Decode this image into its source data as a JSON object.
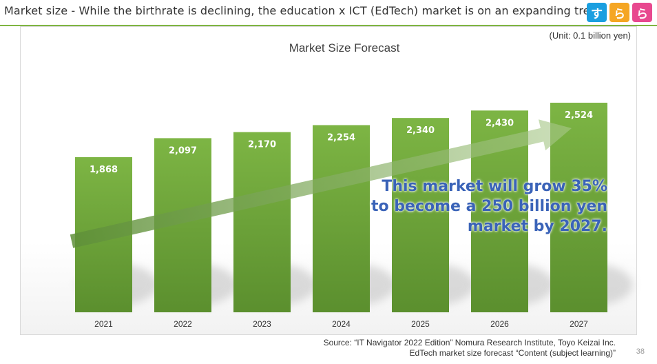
{
  "header": {
    "title": "Market size - While the birthrate is declining, the education x ICT (EdTech) market is on an expanding trend."
  },
  "logo": {
    "tiles": [
      "す",
      "ら",
      "ら"
    ],
    "colors": [
      "#1a9fe0",
      "#f5a623",
      "#e8488f"
    ]
  },
  "unit_label": "(Unit: 0.1 billion yen)",
  "callout": {
    "lines": [
      "This market will grow 35%",
      "to become a 250 billion yen",
      "market by 2027."
    ],
    "color": "#3a63b8"
  },
  "source": {
    "line1": "Source: “IT Navigator 2022 Edition” Nomura Research Institute, Toyo Keizai Inc.",
    "line2": "EdTech market size forecast “Content (subject learning)”"
  },
  "page_number": "38",
  "chart_data": {
    "type": "bar",
    "title": "Market Size Forecast",
    "categories": [
      "2021",
      "2022",
      "2023",
      "2024",
      "2025",
      "2026",
      "2027"
    ],
    "values": [
      1868,
      2097,
      2170,
      2254,
      2340,
      2430,
      2524
    ],
    "value_labels": [
      "1,868",
      "2,097",
      "2,170",
      "2,254",
      "2,340",
      "2,430",
      "2,524"
    ],
    "ylim": [
      0,
      3000
    ],
    "grid": false,
    "bar_color": "#6ea33c",
    "trend_arrow": true
  }
}
